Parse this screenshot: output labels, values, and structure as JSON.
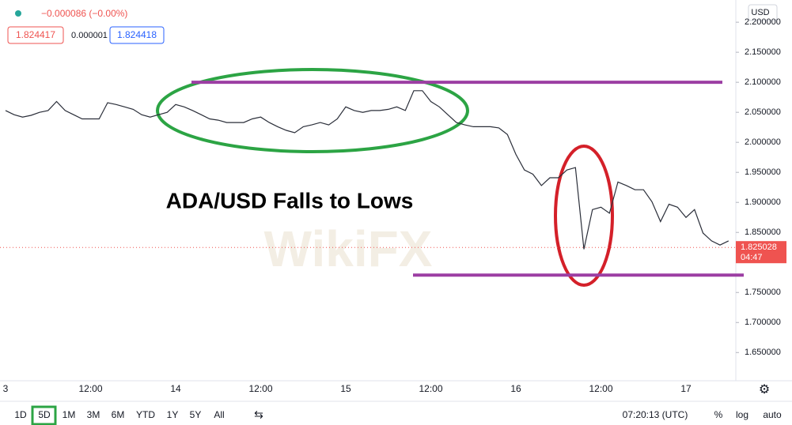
{
  "chart_data": {
    "type": "line",
    "title": "ADA/USD Falls to Lows",
    "watermark": "WikiFX",
    "categories": [
      "3",
      null,
      null,
      null,
      null,
      null,
      null,
      null,
      null,
      null,
      "12:00",
      null,
      null,
      null,
      null,
      null,
      null,
      null,
      null,
      null,
      "14",
      null,
      null,
      null,
      null,
      null,
      null,
      null,
      null,
      null,
      "12:00",
      null,
      null,
      null,
      null,
      null,
      null,
      null,
      null,
      null,
      "15",
      null,
      null,
      null,
      null,
      null,
      null,
      null,
      null,
      null,
      "12:00",
      null,
      null,
      null,
      null,
      null,
      null,
      null,
      null,
      null,
      "16",
      null,
      null,
      null,
      null,
      null,
      null,
      null,
      null,
      null,
      "12:00",
      null,
      null,
      null,
      null,
      null,
      null,
      null,
      null,
      null,
      "17",
      null,
      null,
      null,
      null,
      null
    ],
    "values": [
      2.053,
      2.046,
      2.042,
      2.045,
      2.05,
      2.053,
      2.068,
      2.053,
      2.046,
      2.039,
      2.039,
      2.039,
      2.066,
      2.063,
      2.059,
      2.055,
      2.046,
      2.042,
      2.046,
      2.05,
      2.063,
      2.059,
      2.053,
      2.046,
      2.039,
      2.037,
      2.033,
      2.033,
      2.033,
      2.039,
      2.042,
      2.033,
      2.026,
      2.02,
      2.016,
      2.026,
      2.029,
      2.033,
      2.029,
      2.039,
      2.059,
      2.053,
      2.05,
      2.053,
      2.053,
      2.055,
      2.059,
      2.053,
      2.086,
      2.086,
      2.068,
      2.059,
      2.046,
      2.033,
      2.029,
      2.026,
      2.026,
      2.026,
      2.024,
      2.013,
      1.98,
      1.954,
      1.947,
      1.928,
      1.941,
      1.941,
      1.954,
      1.958,
      1.822,
      1.888,
      1.892,
      1.882,
      1.934,
      1.928,
      1.921,
      1.921,
      1.901,
      1.868,
      1.897,
      1.892,
      1.875,
      1.888,
      1.849,
      1.836,
      1.829,
      1.836
    ],
    "color": "#2a2e39",
    "levels": [
      2.1,
      1.779
    ],
    "level_color": "#9c3ea3",
    "last_price": 1.825028,
    "countdown": "04:47",
    "currency": "USD",
    "ylim": [
      1.603,
      2.237
    ],
    "yticks": [
      {
        "value": 1.65,
        "label": "1.650000"
      },
      {
        "value": 1.7,
        "label": "1.700000"
      },
      {
        "value": 1.75,
        "label": "1.750000"
      },
      {
        "value": 1.85,
        "label": "1.850000"
      },
      {
        "value": 1.9,
        "label": "1.900000"
      },
      {
        "value": 1.95,
        "label": "1.950000"
      },
      {
        "value": 2.0,
        "label": "2.000000"
      },
      {
        "value": 2.05,
        "label": "2.050000"
      },
      {
        "value": 2.1,
        "label": "2.100000"
      },
      {
        "value": 2.15,
        "label": "2.150000"
      },
      {
        "value": 2.2,
        "label": "2.200000"
      }
    ]
  },
  "header": {
    "change": "−0.000086 (−0.00%)",
    "bid": "1.824417",
    "spread": "0.000001",
    "ask": "1.824418"
  },
  "toolbar": {
    "ranges": [
      "1D",
      "5D",
      "1M",
      "3M",
      "6M",
      "YTD",
      "1Y",
      "5Y",
      "All"
    ],
    "time": "07:20:13 (UTC)",
    "percent": "%",
    "log": "log",
    "auto": "auto"
  }
}
